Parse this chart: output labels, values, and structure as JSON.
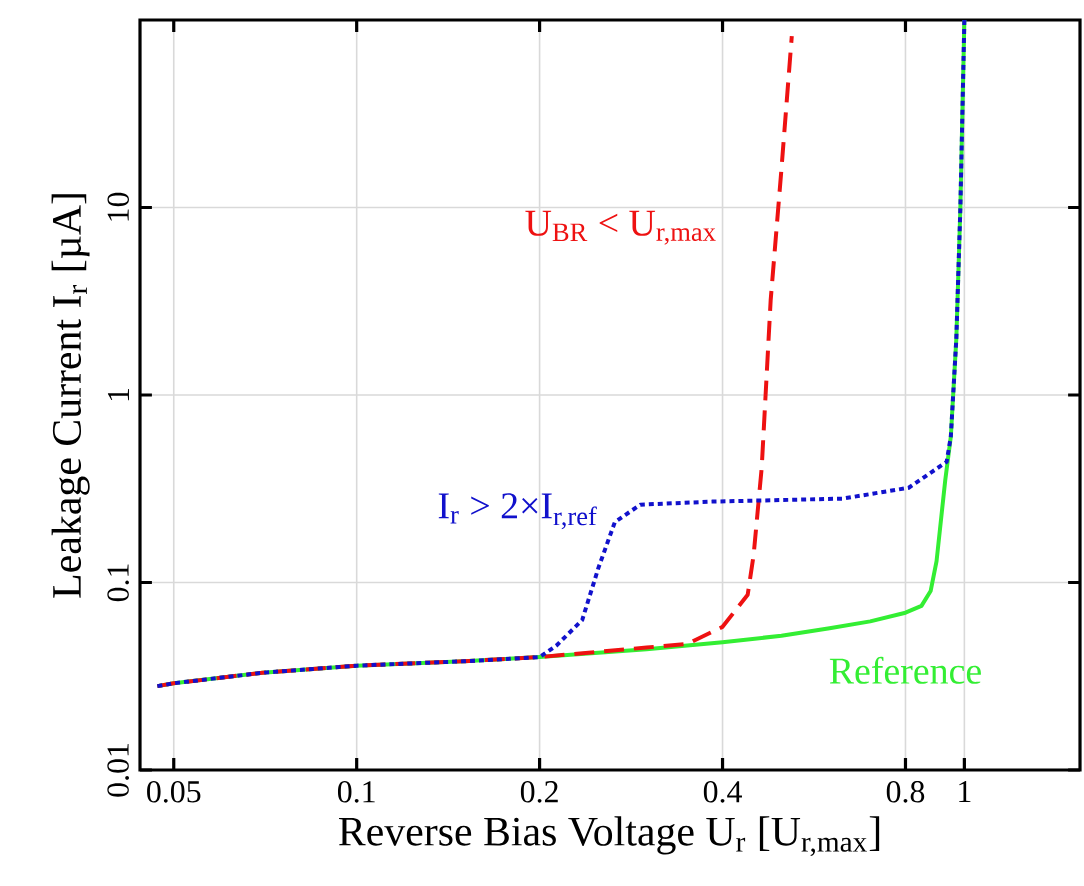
{
  "chart_data": {
    "type": "line",
    "xlabel": "Reverse Bias Voltage U$_{r}$ [U$_{r,max}$]",
    "ylabel": "Leakage Current I$_{r}$ [µA]",
    "log": "xy",
    "grid": true,
    "marker": "none",
    "xlim": [
      0.044,
      1.55
    ],
    "ylim": [
      0.01,
      100
    ],
    "xticks": [
      0.05,
      0.1,
      0.2,
      0.4,
      0.8,
      1
    ],
    "yticks": [
      0.01,
      0.1,
      1,
      10
    ],
    "series": [
      {
        "name": "Reference",
        "color": "#33ee33",
        "line_style": "solid",
        "x": [
          0.047,
          0.05,
          0.07,
          0.1,
          0.15,
          0.2,
          0.3,
          0.4,
          0.5,
          0.6,
          0.7,
          0.8,
          0.85,
          0.88,
          0.9,
          0.93,
          0.95,
          0.97,
          0.985,
          1.0
        ],
        "values": [
          0.028,
          0.029,
          0.033,
          0.036,
          0.038,
          0.04,
          0.044,
          0.048,
          0.052,
          0.057,
          0.062,
          0.069,
          0.075,
          0.09,
          0.13,
          0.35,
          0.6,
          2,
          10,
          100
        ]
      },
      {
        "name": "U$_{BR}$ < U$_{r,max}$",
        "color": "#ee1111",
        "line_style": "dashed",
        "x": [
          0.047,
          0.05,
          0.07,
          0.1,
          0.15,
          0.2,
          0.3,
          0.35,
          0.4,
          0.44,
          0.45,
          0.464,
          0.48,
          0.5,
          0.52
        ],
        "values": [
          0.028,
          0.029,
          0.033,
          0.036,
          0.038,
          0.04,
          0.045,
          0.047,
          0.058,
          0.086,
          0.14,
          0.41,
          3.2,
          16,
          82
        ]
      },
      {
        "name": "I$_{r}$ > 2×I$_{r,ref}$",
        "color": "#1111cc",
        "line_style": "dotted",
        "x": [
          0.047,
          0.05,
          0.07,
          0.1,
          0.15,
          0.2,
          0.213,
          0.235,
          0.25,
          0.266,
          0.293,
          0.385,
          0.63,
          0.81,
          0.935,
          0.95,
          0.97,
          0.985,
          1.0
        ],
        "values": [
          0.028,
          0.029,
          0.033,
          0.036,
          0.038,
          0.04,
          0.046,
          0.063,
          0.12,
          0.21,
          0.26,
          0.27,
          0.28,
          0.32,
          0.44,
          0.6,
          2,
          10,
          100
        ]
      }
    ]
  }
}
